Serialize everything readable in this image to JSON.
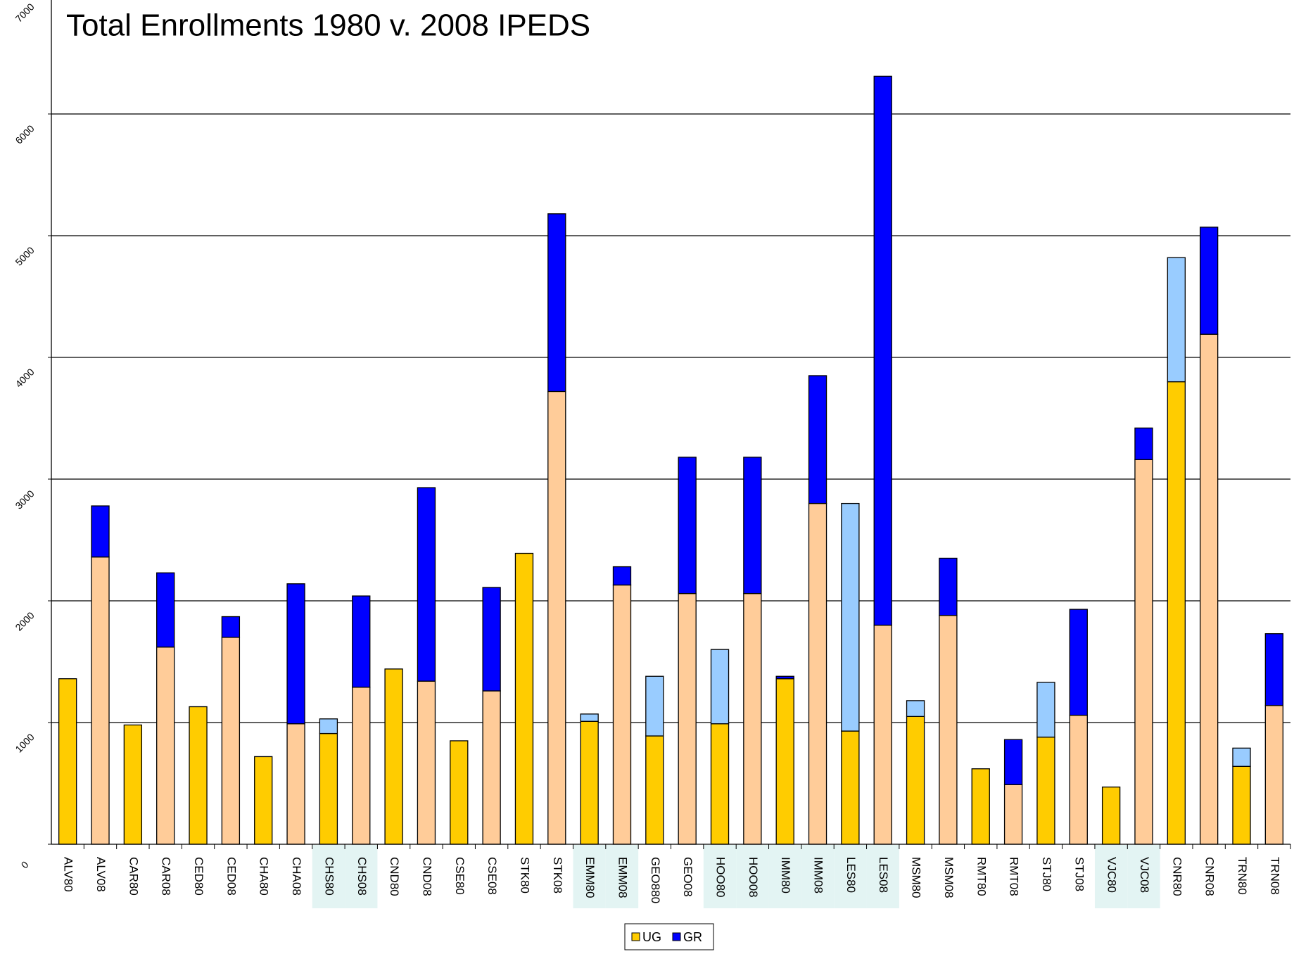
{
  "chart_data": {
    "type": "stacked_bar",
    "title": "Total Enrollments 1980 v. 2008   IPEDS",
    "categories": [
      "ALV80",
      "ALV08",
      "CAR80",
      "CAR08",
      "CED80",
      "CED08",
      "CHA80",
      "CHA08",
      "CHS80",
      "CHS08",
      "CND80",
      "CND08",
      "CSE80",
      "CSE08",
      "STK80",
      "STK08",
      "EMM80",
      "EMM08",
      "GEO880",
      "GEO08",
      "HOO80",
      "HOO08",
      "IMM80",
      "IMM08",
      "LES80",
      "LES08",
      "MSM80",
      "MSM08",
      "RMT80",
      "RMT08",
      "STJ80",
      "STJ08",
      "VJC80",
      "VJC08",
      "CNR80",
      "CNR08",
      "TRN80",
      "TRN08"
    ],
    "highlighted": [
      false,
      false,
      false,
      false,
      false,
      false,
      false,
      false,
      true,
      true,
      false,
      false,
      false,
      false,
      false,
      false,
      true,
      true,
      false,
      false,
      true,
      true,
      true,
      true,
      true,
      true,
      false,
      false,
      false,
      false,
      false,
      false,
      true,
      true,
      false,
      false,
      false,
      false
    ],
    "series": [
      {
        "name": "UG",
        "color": "#ffcc00",
        "values": [
          1360,
          2360,
          980,
          1620,
          1130,
          1700,
          720,
          990,
          910,
          1290,
          1440,
          1340,
          850,
          1260,
          2390,
          3720,
          1010,
          2130,
          890,
          2060,
          990,
          2060,
          1360,
          2800,
          930,
          1800,
          1050,
          1880,
          620,
          490,
          880,
          1060,
          470,
          3160,
          3800,
          4190,
          640,
          1140
        ],
        "colors": [
          "#ffcc00",
          "#ffcc99",
          "#ffcc00",
          "#ffcc99",
          "#ffcc00",
          "#ffcc99",
          "#ffcc00",
          "#ffcc99",
          "#ffcc00",
          "#ffcc99",
          "#ffcc00",
          "#ffcc99",
          "#ffcc00",
          "#ffcc99",
          "#ffcc00",
          "#ffcc99",
          "#ffcc00",
          "#ffcc99",
          "#ffcc00",
          "#ffcc99",
          "#ffcc00",
          "#ffcc99",
          "#ffcc00",
          "#ffcc99",
          "#ffcc00",
          "#ffcc99",
          "#ffcc00",
          "#ffcc99",
          "#ffcc00",
          "#ffcc99",
          "#ffcc00",
          "#ffcc99",
          "#ffcc00",
          "#ffcc99",
          "#ffcc00",
          "#ffcc99",
          "#ffcc00",
          "#ffcc99"
        ]
      },
      {
        "name": "GR",
        "color": "#0000ff",
        "values": [
          0,
          420,
          0,
          610,
          0,
          170,
          0,
          1150,
          120,
          750,
          0,
          1590,
          0,
          850,
          0,
          1460,
          60,
          150,
          490,
          1120,
          610,
          1120,
          20,
          1050,
          1870,
          4510,
          130,
          470,
          0,
          370,
          450,
          870,
          0,
          260,
          1020,
          880,
          150,
          590
        ],
        "colors": [
          "#0000ff",
          "#0000ff",
          "#0000ff",
          "#0000ff",
          "#0000ff",
          "#0000ff",
          "#0000ff",
          "#0000ff",
          "#99ccff",
          "#0000ff",
          "#0000ff",
          "#0000ff",
          "#0000ff",
          "#0000ff",
          "#0000ff",
          "#0000ff",
          "#99ccff",
          "#0000ff",
          "#99ccff",
          "#0000ff",
          "#99ccff",
          "#0000ff",
          "#0000ff",
          "#0000ff",
          "#99ccff",
          "#0000ff",
          "#99ccff",
          "#0000ff",
          "#0000ff",
          "#0000ff",
          "#99ccff",
          "#0000ff",
          "#0000ff",
          "#0000ff",
          "#99ccff",
          "#0000ff",
          "#99ccff",
          "#0000ff"
        ]
      }
    ],
    "ylim": [
      0,
      7000
    ],
    "yticks": [
      0,
      1000,
      2000,
      3000,
      4000,
      5000,
      6000,
      7000
    ],
    "grid": true,
    "legend": "bottom"
  }
}
